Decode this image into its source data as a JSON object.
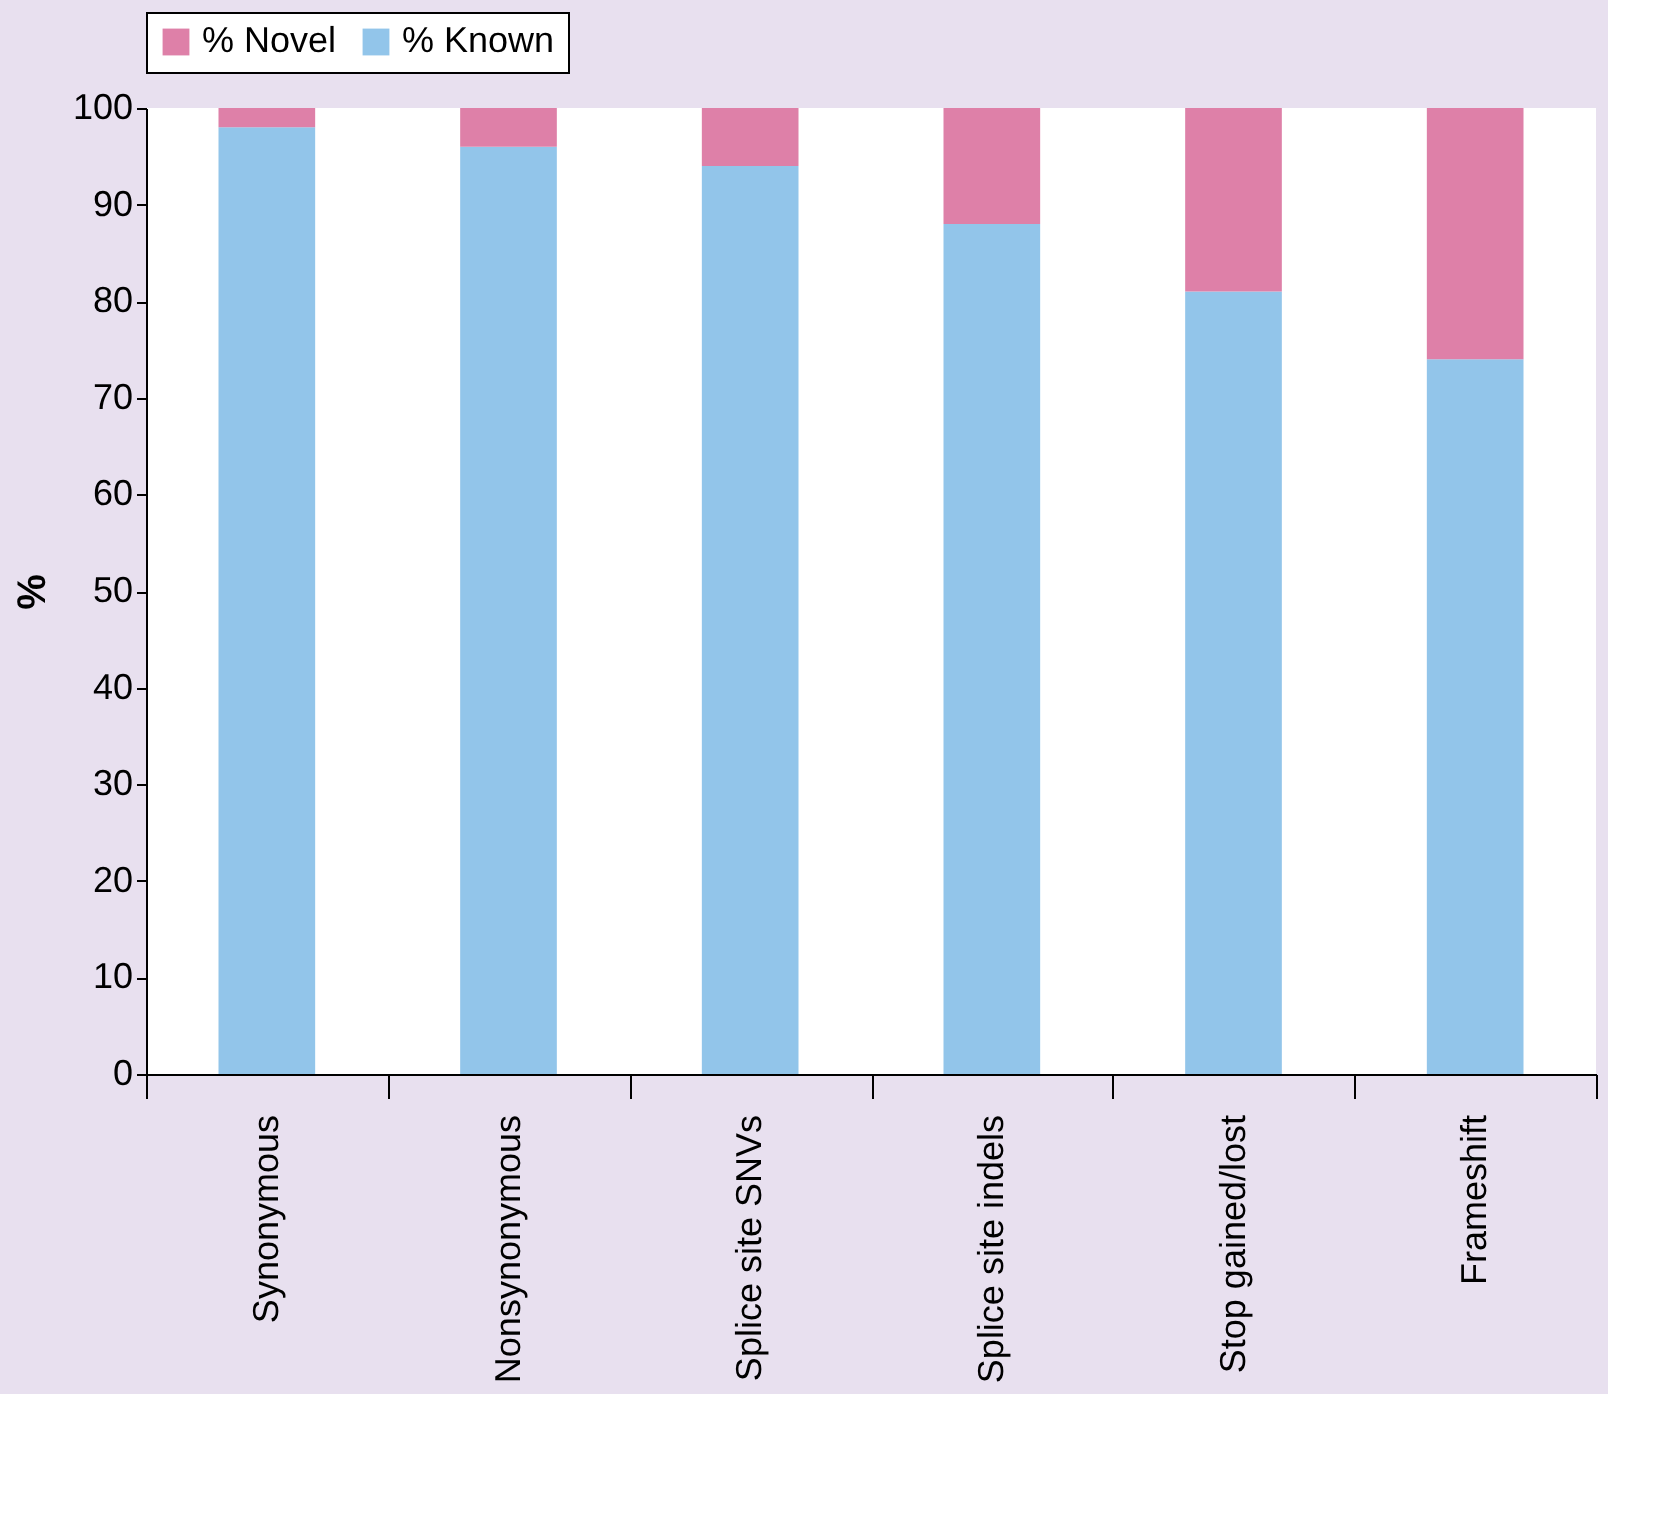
{
  "chart_data": {
    "type": "bar",
    "ylabel": "%",
    "stacked": true,
    "legend": "top",
    "grid": false,
    "categories": [
      "Synonymous",
      "Nonsynonymous",
      "Splice site SNVs",
      "Splice site indels",
      "Stop gained/lost",
      "Frameshift"
    ],
    "series": [
      {
        "name": "% Known",
        "color": "#92c5ea",
        "values": [
          98,
          96,
          94,
          88,
          81,
          74
        ]
      },
      {
        "name": "% Novel",
        "color": "#de80a8",
        "values": [
          2,
          4,
          6,
          12,
          19,
          26
        ]
      }
    ],
    "ylim": [
      0,
      100
    ],
    "yticks": [
      0,
      10,
      20,
      30,
      40,
      50,
      60,
      70,
      80,
      90,
      100
    ]
  }
}
